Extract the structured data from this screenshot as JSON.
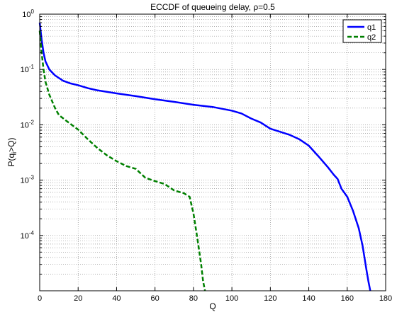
{
  "chart_data": {
    "type": "line",
    "title": "ECCDF of queueing delay, ρ=0.5",
    "xlabel": "Q",
    "ylabel": "P(q",
    "ylabel_sub": "i",
    "ylabel_rest": ">Q)",
    "xlim": [
      0,
      180
    ],
    "ylim": [
      1e-05,
      1
    ],
    "yscale": "log",
    "grid": true,
    "legend_position": "top-right",
    "x_ticks": [
      0,
      20,
      40,
      60,
      80,
      100,
      120,
      140,
      160,
      180
    ],
    "y_ticks": [
      {
        "base": "10",
        "exp": "0",
        "value": 1
      },
      {
        "base": "10",
        "exp": "-1",
        "value": 0.1
      },
      {
        "base": "10",
        "exp": "-2",
        "value": 0.01
      },
      {
        "base": "10",
        "exp": "-3",
        "value": 0.001
      },
      {
        "base": "10",
        "exp": "-4",
        "value": 0.0001
      }
    ],
    "series": [
      {
        "name": "q1",
        "color": "#0000ff",
        "dash": "solid",
        "points": [
          [
            0,
            0.7
          ],
          [
            1,
            0.35
          ],
          [
            2,
            0.2
          ],
          [
            3,
            0.14
          ],
          [
            5,
            0.1
          ],
          [
            8,
            0.078
          ],
          [
            12,
            0.063
          ],
          [
            16,
            0.056
          ],
          [
            20,
            0.052
          ],
          [
            25,
            0.046
          ],
          [
            30,
            0.042
          ],
          [
            40,
            0.037
          ],
          [
            50,
            0.033
          ],
          [
            60,
            0.029
          ],
          [
            70,
            0.026
          ],
          [
            80,
            0.023
          ],
          [
            90,
            0.021
          ],
          [
            100,
            0.018
          ],
          [
            105,
            0.016
          ],
          [
            110,
            0.013
          ],
          [
            115,
            0.011
          ],
          [
            120,
            0.0085
          ],
          [
            125,
            0.0075
          ],
          [
            130,
            0.0066
          ],
          [
            135,
            0.0055
          ],
          [
            140,
            0.0042
          ],
          [
            145,
            0.0027
          ],
          [
            150,
            0.0017
          ],
          [
            153,
            0.00125
          ],
          [
            155,
            0.00105
          ],
          [
            157,
            0.0007
          ],
          [
            160,
            0.0005
          ],
          [
            163,
            0.00028
          ],
          [
            166,
            0.000135
          ],
          [
            168,
            6.5e-05
          ],
          [
            170,
            2.4e-05
          ],
          [
            171,
            1.5e-05
          ],
          [
            172,
            1e-05
          ]
        ]
      },
      {
        "name": "q2",
        "color": "#008000",
        "dash": "dashed",
        "points": [
          [
            0,
            0.5
          ],
          [
            1,
            0.2
          ],
          [
            2,
            0.1
          ],
          [
            3,
            0.06
          ],
          [
            5,
            0.035
          ],
          [
            8,
            0.02
          ],
          [
            10,
            0.015
          ],
          [
            15,
            0.011
          ],
          [
            20,
            0.0082
          ],
          [
            25,
            0.0055
          ],
          [
            30,
            0.0038
          ],
          [
            35,
            0.0028
          ],
          [
            40,
            0.0022
          ],
          [
            45,
            0.0018
          ],
          [
            50,
            0.0016
          ],
          [
            55,
            0.0011
          ],
          [
            60,
            0.00096
          ],
          [
            65,
            0.00085
          ],
          [
            70,
            0.00065
          ],
          [
            75,
            0.00058
          ],
          [
            78,
            0.0005
          ],
          [
            80,
            0.00025
          ],
          [
            82,
            9e-05
          ],
          [
            84,
            3e-05
          ],
          [
            85,
            1.5e-05
          ],
          [
            86,
            1e-05
          ]
        ]
      }
    ]
  }
}
